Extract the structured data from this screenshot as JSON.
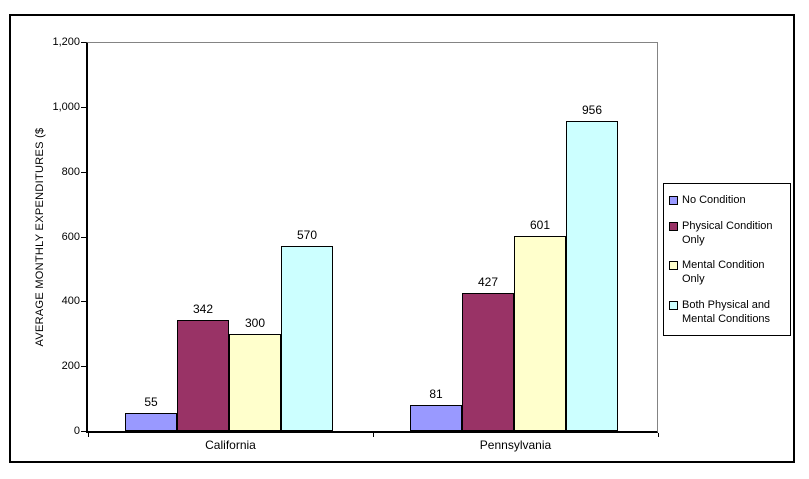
{
  "chart_data": {
    "type": "bar",
    "title": "",
    "ylabel": "AVERAGE MONTHLY EXPENDITURES ($",
    "xlabel": "",
    "categories": [
      "California",
      "Pennsylvania"
    ],
    "series": [
      {
        "name": "No Condition",
        "color": "#9999FF",
        "values": [
          55,
          81
        ]
      },
      {
        "name": "Physical Condition Only",
        "color": "#993366",
        "values": [
          342,
          427
        ]
      },
      {
        "name": "Mental Condition Only",
        "color": "#FFFFCC",
        "values": [
          300,
          601
        ]
      },
      {
        "name": "Both Physical and Mental Conditions",
        "color": "#CCFFFF",
        "values": [
          570,
          956
        ]
      }
    ],
    "ylim": [
      0,
      1200
    ],
    "ytick_step": 200,
    "ytick_labels": [
      "0",
      "200",
      "400",
      "600",
      "800",
      "1,000",
      "1,200"
    ],
    "grid": false,
    "data_labels": true,
    "legend_position": "right",
    "plot_border_color": "#848484",
    "axis_color": "#000000"
  }
}
